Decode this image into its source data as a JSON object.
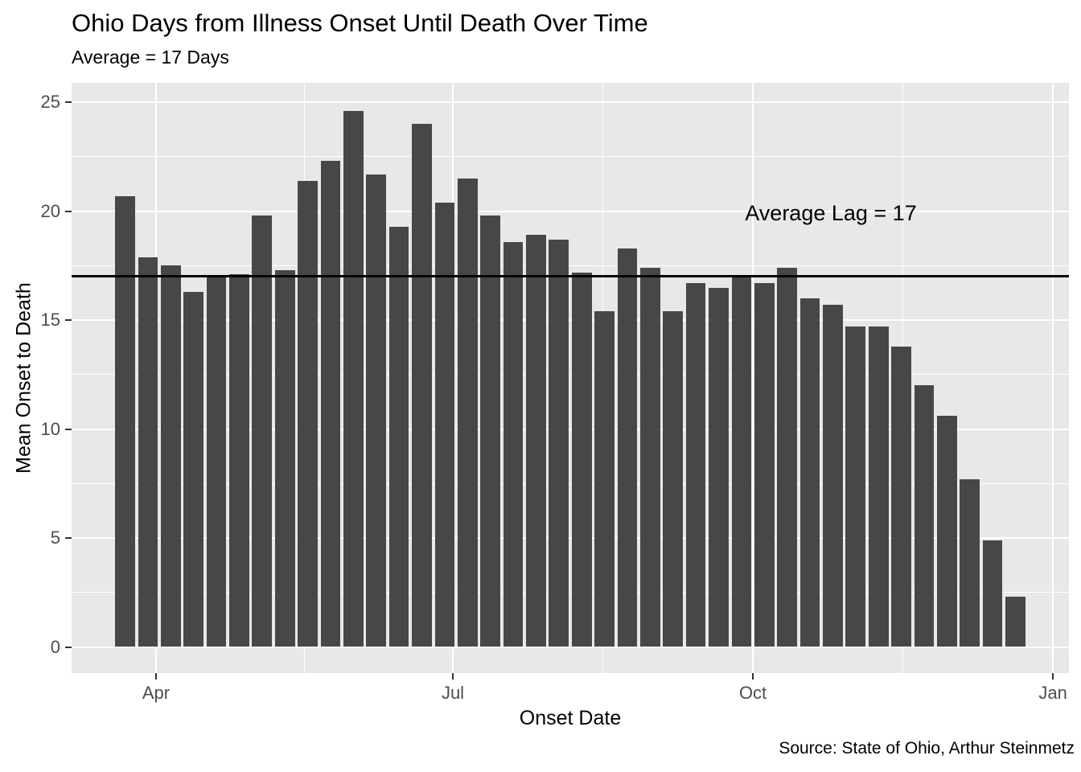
{
  "chart_data": {
    "type": "bar",
    "title": "Ohio Days from Illness Onset Until Death Over Time",
    "subtitle": "Average = 17 Days",
    "xlabel": "Onset Date",
    "ylabel": "Mean Onset to Death",
    "caption": "Source: State of Ohio, Arthur Steinmetz",
    "x_axis": {
      "tick_labels": [
        "Apr",
        "Jul",
        "Oct",
        "Jan"
      ],
      "tick_positions_days_from_apr1": [
        0,
        91,
        183,
        275
      ],
      "minor_gridline_days_from_apr1": [
        45.5,
        137,
        229
      ]
    },
    "y_axis": {
      "tick_labels": [
        "0",
        "5",
        "10",
        "15",
        "20",
        "25"
      ],
      "ticks": [
        0,
        5,
        10,
        15,
        20,
        25
      ],
      "minor_gridlines": [
        2.5,
        7.5,
        12.5,
        17.5,
        22.5
      ],
      "range": [
        0,
        25.9
      ]
    },
    "bin_width_days": 7,
    "first_bar_center_days_from_apr1": -9.5,
    "values": [
      20.7,
      17.9,
      17.5,
      16.3,
      17.0,
      17.1,
      19.8,
      17.3,
      21.4,
      22.3,
      24.6,
      21.7,
      19.3,
      24.0,
      20.4,
      21.5,
      19.8,
      18.6,
      18.9,
      18.7,
      17.2,
      15.4,
      18.3,
      17.4,
      15.4,
      16.7,
      16.5,
      17.0,
      16.7,
      17.4,
      16.0,
      15.7,
      14.7,
      14.7,
      13.8,
      12.0,
      10.6,
      7.7,
      4.9,
      2.3
    ],
    "reference_line": {
      "value": 17,
      "label": "Average Lag = 17"
    },
    "grid": true,
    "legend": false
  },
  "colors": {
    "bar": "#474747",
    "panel_background": "#E8E8E8",
    "gridline": "#FFFFFF",
    "reference_line": "#000000",
    "tick_mark": "#333333",
    "tick_text": "#4D4D4D",
    "text": "#000000",
    "page_background": "#FFFFFF"
  }
}
